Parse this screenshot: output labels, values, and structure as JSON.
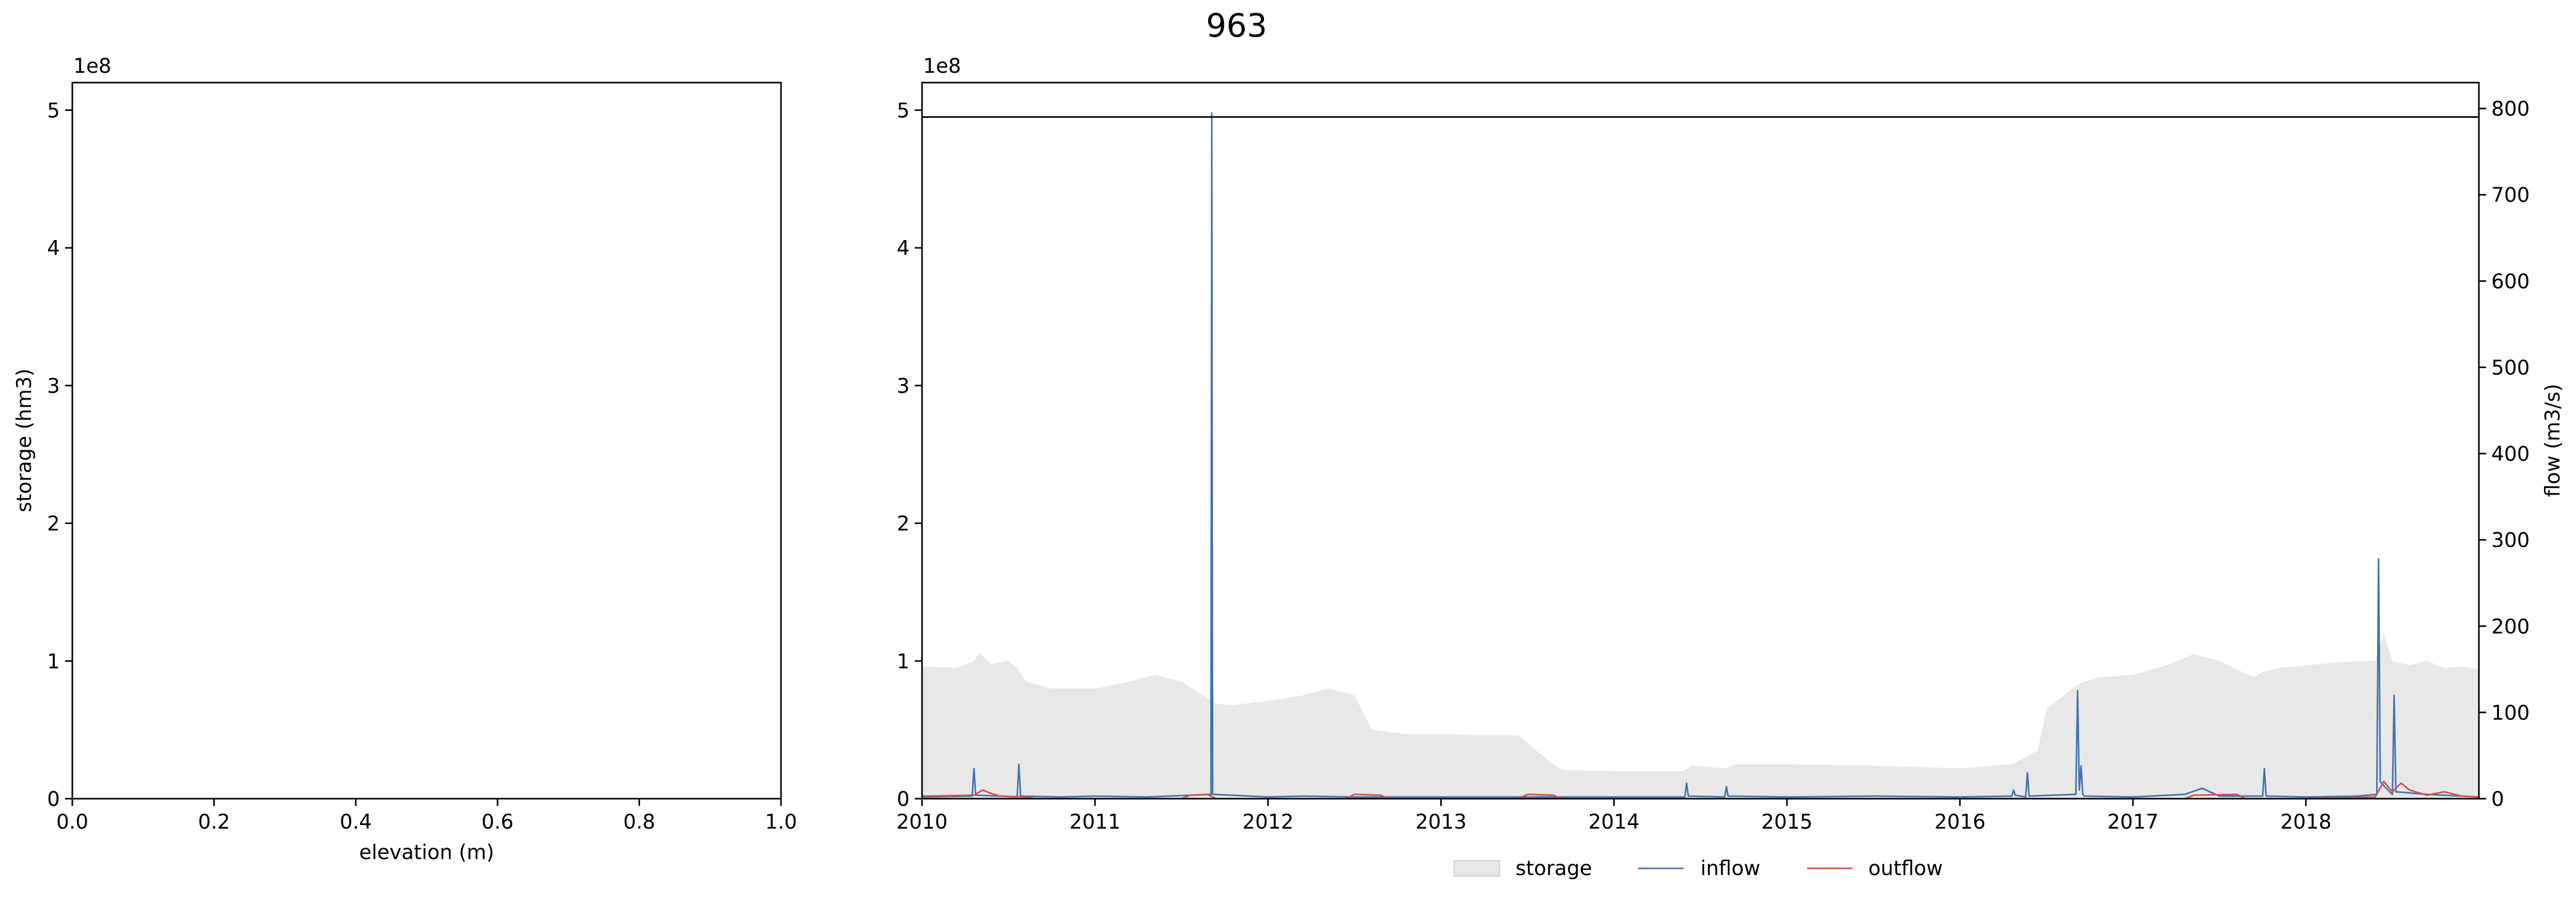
{
  "chart_data": [
    {
      "type": "line",
      "title": "963",
      "xlabel": "elevation (m)",
      "ylabel": "storage (hm3)",
      "y_offset_label": "1e8",
      "xlim": [
        0.0,
        1.0
      ],
      "ylim": [
        0,
        5.2
      ],
      "x_ticks": [
        "0.0",
        "0.2",
        "0.4",
        "0.6",
        "0.8",
        "1.0"
      ],
      "y_ticks": [
        "0",
        "1",
        "2",
        "3",
        "4",
        "5"
      ],
      "series": []
    },
    {
      "type": "area",
      "xlabel": "",
      "ylabel_left": "",
      "y_offset_label": "1e8",
      "ylabel_right": "flow (m3/s)",
      "xlim": [
        2010.0,
        2019.0
      ],
      "ylim_left": [
        0,
        5.2
      ],
      "ylim_right": [
        0,
        830
      ],
      "x_ticks": [
        "2010",
        "2011",
        "2012",
        "2013",
        "2014",
        "2015",
        "2016",
        "2017",
        "2018"
      ],
      "y_ticks_left": [
        "0",
        "1",
        "2",
        "3",
        "4",
        "5"
      ],
      "y_ticks_right": [
        "0",
        "100",
        "200",
        "300",
        "400",
        "500",
        "600",
        "700",
        "800"
      ],
      "hline": {
        "value": 4.95
      },
      "legend": {
        "placement": "bottom-center",
        "entries": [
          "storage",
          "inflow",
          "outflow"
        ]
      },
      "series": [
        {
          "name": "storage",
          "axis": "left",
          "color": "#e8e8e8",
          "x": [
            2010.0,
            2010.2,
            2010.3,
            2010.33,
            2010.4,
            2010.5,
            2010.55,
            2010.6,
            2010.75,
            2011.0,
            2011.2,
            2011.35,
            2011.5,
            2011.7,
            2011.8,
            2012.0,
            2012.2,
            2012.35,
            2012.5,
            2012.6,
            2012.8,
            2013.0,
            2013.2,
            2013.45,
            2013.55,
            2013.65,
            2013.7,
            2014.0,
            2014.4,
            2014.45,
            2014.65,
            2014.7,
            2015.0,
            2015.5,
            2016.0,
            2016.3,
            2016.45,
            2016.5,
            2016.65,
            2016.7,
            2016.8,
            2017.0,
            2017.2,
            2017.35,
            2017.5,
            2017.7,
            2017.75,
            2017.85,
            2018.0,
            2018.3,
            2018.4,
            2018.45,
            2018.5,
            2018.6,
            2018.7,
            2018.8,
            2018.9,
            2019.0
          ],
          "values": [
            0.96,
            0.95,
            1.0,
            1.06,
            0.98,
            1.0,
            0.95,
            0.85,
            0.8,
            0.8,
            0.85,
            0.9,
            0.85,
            0.69,
            0.68,
            0.71,
            0.75,
            0.8,
            0.75,
            0.5,
            0.47,
            0.47,
            0.46,
            0.46,
            0.35,
            0.25,
            0.21,
            0.2,
            0.2,
            0.24,
            0.22,
            0.25,
            0.25,
            0.24,
            0.22,
            0.25,
            0.35,
            0.65,
            0.8,
            0.84,
            0.88,
            0.9,
            0.97,
            1.05,
            1.0,
            0.88,
            0.92,
            0.95,
            0.97,
            1.0,
            1.0,
            1.2,
            1.0,
            0.97,
            1.0,
            0.95,
            0.96,
            0.94
          ]
        },
        {
          "name": "inflow",
          "axis": "right",
          "color": "#3f72af",
          "x": [
            2010.0,
            2010.29,
            2010.3,
            2010.31,
            2010.45,
            2010.55,
            2010.56,
            2010.57,
            2010.8,
            2011.0,
            2011.3,
            2011.67,
            2011.675,
            2011.68,
            2011.9,
            2012.0,
            2012.2,
            2012.5,
            2013.0,
            2013.5,
            2014.0,
            2014.41,
            2014.42,
            2014.43,
            2014.64,
            2014.65,
            2014.66,
            2015.0,
            2015.5,
            2016.0,
            2016.3,
            2016.31,
            2016.32,
            2016.38,
            2016.39,
            2016.4,
            2016.67,
            2016.68,
            2016.69,
            2016.7,
            2016.71,
            2016.72,
            2017.0,
            2017.3,
            2017.4,
            2017.5,
            2017.75,
            2017.76,
            2017.77,
            2018.0,
            2018.3,
            2018.41,
            2018.42,
            2018.43,
            2018.45,
            2018.5,
            2018.51,
            2018.52,
            2018.7,
            2018.9,
            2019.0
          ],
          "values": [
            2,
            3,
            35,
            4,
            3,
            2,
            40,
            3,
            2,
            3,
            2,
            5,
            795,
            5,
            3,
            2,
            3,
            2,
            2,
            2,
            2,
            2,
            18,
            3,
            2,
            14,
            3,
            2,
            3,
            2,
            3,
            10,
            4,
            2,
            30,
            3,
            5,
            125,
            10,
            38,
            5,
            3,
            2,
            5,
            12,
            3,
            3,
            35,
            3,
            2,
            3,
            5,
            278,
            20,
            15,
            5,
            120,
            8,
            5,
            3,
            2
          ]
        },
        {
          "name": "outflow",
          "axis": "right",
          "color": "#d94b4b",
          "x": [
            2010.0,
            2010.3,
            2010.35,
            2010.4,
            2010.45,
            2010.6,
            2010.65,
            2011.0,
            2011.5,
            2011.55,
            2011.65,
            2011.7,
            2012.0,
            2012.45,
            2012.5,
            2012.65,
            2012.7,
            2013.0,
            2013.45,
            2013.5,
            2013.65,
            2013.7,
            2014.0,
            2015.0,
            2016.0,
            2017.0,
            2017.3,
            2017.35,
            2017.6,
            2017.65,
            2018.0,
            2018.4,
            2018.45,
            2018.5,
            2018.55,
            2018.6,
            2018.7,
            2018.8,
            2018.9,
            2019.0
          ],
          "values": [
            3,
            4,
            10,
            6,
            3,
            2,
            0,
            0,
            0,
            4,
            5,
            0,
            0,
            0,
            5,
            4,
            0,
            0,
            0,
            5,
            4,
            0,
            0,
            0,
            0,
            0,
            0,
            4,
            5,
            0,
            0,
            2,
            20,
            8,
            18,
            10,
            4,
            8,
            3,
            2
          ]
        }
      ]
    }
  ]
}
